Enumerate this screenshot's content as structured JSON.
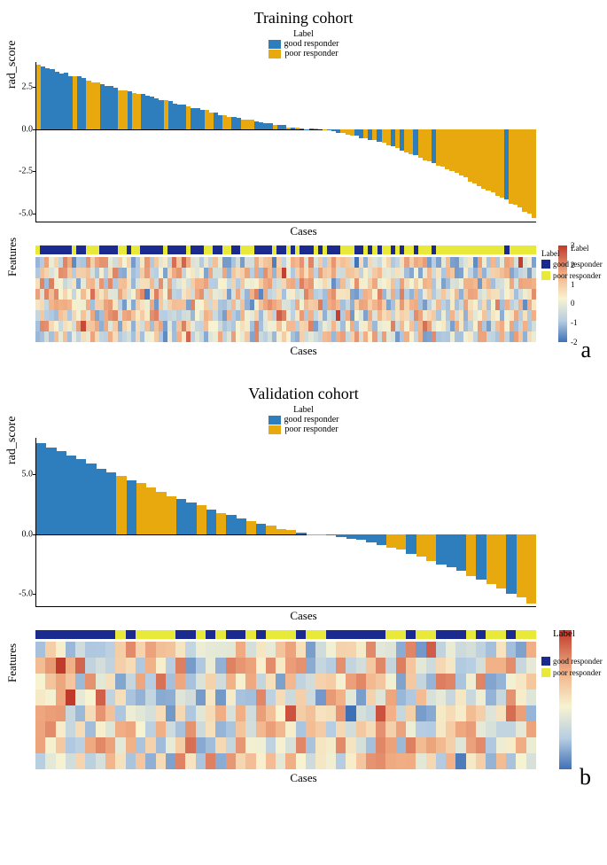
{
  "colors": {
    "good": "#2e7ebd",
    "poor": "#e8a90f",
    "label_blue": "#1a2a8f",
    "label_yellow": "#e9e93a",
    "heat_low": "#3f70b5",
    "heat_midlow": "#b6cde2",
    "heat_mid": "#f7f3d1",
    "heat_midhigh": "#f2b187",
    "heat_high": "#c0392b"
  },
  "panel_a": {
    "title": "Training cohort",
    "legend_title": "Label",
    "legend_items": [
      {
        "label": "good responder",
        "color": "#2e7ebd"
      },
      {
        "label": "poor responder",
        "color": "#e8a90f"
      }
    ],
    "ylabel": "rad_score",
    "xlabel": "Cases",
    "ylim": [
      -5.5,
      4.0
    ],
    "yticks": [
      -5.0,
      -2.5,
      0.0,
      2.5
    ],
    "n_cases": 110,
    "n_features": 8,
    "heat_legend_title": "Label",
    "heat_legend_items": [
      {
        "label": "good responder",
        "color": "#1a2a8f"
      },
      {
        "label": "poor responder",
        "color": "#e9e93a"
      }
    ],
    "colorbar_title": "Label",
    "colorbar_ticks": [
      -2,
      -1,
      0,
      1,
      2,
      3
    ],
    "letter": "a"
  },
  "panel_b": {
    "title": "Validation cohort",
    "legend_title": "Label",
    "legend_items": [
      {
        "label": "good responder",
        "color": "#2e7ebd"
      },
      {
        "label": "poor responder",
        "color": "#e8a90f"
      }
    ],
    "ylabel": "rad_score",
    "xlabel": "Cases",
    "ylim": [
      -6.0,
      8.0
    ],
    "yticks": [
      -5.0,
      0.0,
      5.0
    ],
    "n_cases": 50,
    "n_features": 8,
    "heat_legend_title": "Label",
    "heat_legend_items": [
      {
        "label": "good responder",
        "color": "#1a2a8f"
      },
      {
        "label": "poor responder",
        "color": "#e9e93a"
      }
    ],
    "colorbar_ticks": [],
    "letter": "b"
  }
}
